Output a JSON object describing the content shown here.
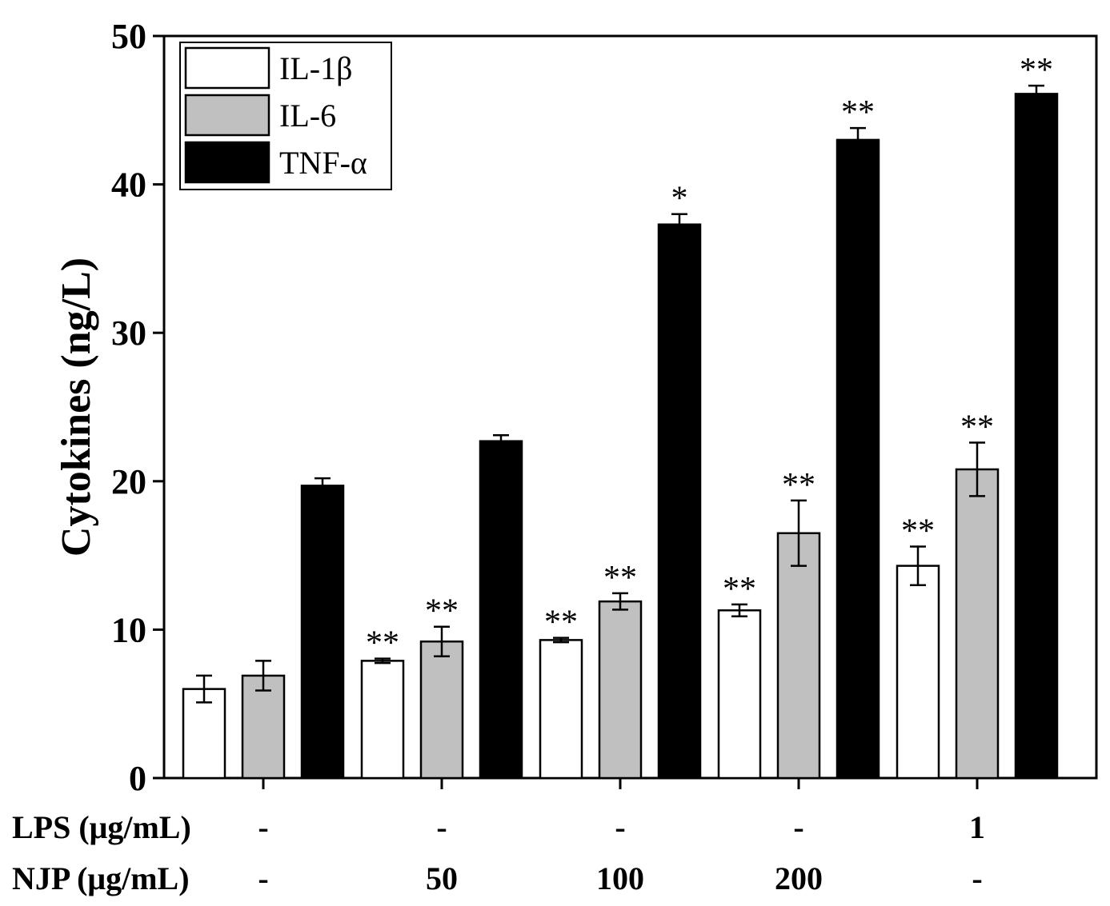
{
  "chart_data": {
    "type": "bar",
    "ylabel": "Cytokines (ng/L)",
    "ylim": [
      0,
      50
    ],
    "yticks": [
      "0",
      "10",
      "20",
      "30",
      "40",
      "50"
    ],
    "groups": [
      {
        "lps": "-",
        "njp": "-"
      },
      {
        "lps": "-",
        "njp": "50"
      },
      {
        "lps": "-",
        "njp": "100"
      },
      {
        "lps": "-",
        "njp": "200"
      },
      {
        "lps": "1",
        "njp": "-"
      }
    ],
    "row_labels": {
      "lps": "LPS (μg/mL)",
      "njp": "NJP (μg/mL)"
    },
    "series": [
      {
        "name": "IL-1β",
        "color": "#ffffff",
        "values": [
          6.0,
          7.9,
          9.3,
          11.3,
          14.3
        ],
        "errors": [
          0.9,
          0.15,
          0.15,
          0.4,
          1.3
        ],
        "sig": [
          "",
          "**",
          "**",
          "**",
          "**"
        ]
      },
      {
        "name": "IL-6",
        "color": "#c0c0c0",
        "values": [
          6.9,
          9.2,
          11.9,
          16.5,
          20.8
        ],
        "errors": [
          1.0,
          1.0,
          0.55,
          2.2,
          1.8
        ],
        "sig": [
          "",
          "**",
          "**",
          "**",
          "**"
        ]
      },
      {
        "name": "TNF-α",
        "color": "#000000",
        "values": [
          19.7,
          22.7,
          37.3,
          43.0,
          46.1
        ],
        "errors": [
          0.5,
          0.4,
          0.7,
          0.8,
          0.55
        ],
        "sig": [
          "",
          "",
          "*",
          "**",
          "**"
        ]
      }
    ]
  }
}
